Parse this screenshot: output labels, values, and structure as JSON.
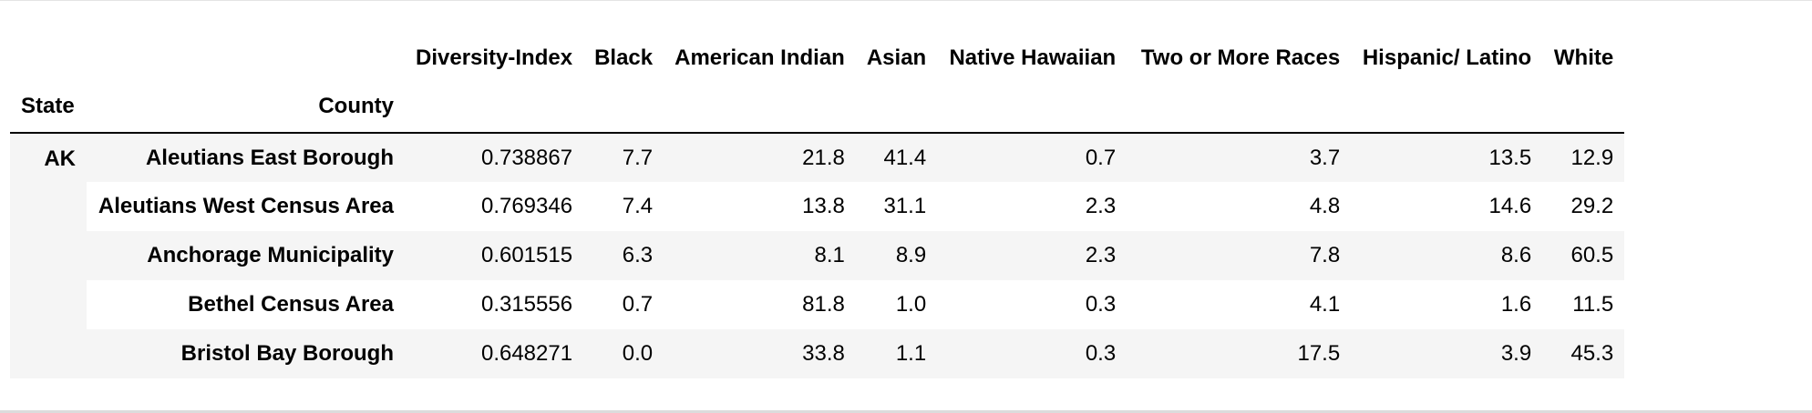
{
  "table": {
    "index_names": [
      "State",
      "County"
    ],
    "columns": [
      "Diversity-Index",
      "Black",
      "American Indian",
      "Asian",
      "Native Hawaiian",
      "Two or More Races",
      "Hispanic/ Latino",
      "White"
    ],
    "state": "AK",
    "rows": [
      {
        "county": "Aleutians East Borough",
        "values": [
          "0.738867",
          "7.7",
          "21.8",
          "41.4",
          "0.7",
          "3.7",
          "13.5",
          "12.9"
        ]
      },
      {
        "county": "Aleutians West Census Area",
        "values": [
          "0.769346",
          "7.4",
          "13.8",
          "31.1",
          "2.3",
          "4.8",
          "14.6",
          "29.2"
        ]
      },
      {
        "county": "Anchorage Municipality",
        "values": [
          "0.601515",
          "6.3",
          "8.1",
          "8.9",
          "2.3",
          "7.8",
          "8.6",
          "60.5"
        ]
      },
      {
        "county": "Bethel Census Area",
        "values": [
          "0.315556",
          "0.7",
          "81.8",
          "1.0",
          "0.3",
          "4.1",
          "1.6",
          "11.5"
        ]
      },
      {
        "county": "Bristol Bay Borough",
        "values": [
          "0.648271",
          "0.0",
          "33.8",
          "1.1",
          "0.3",
          "17.5",
          "3.9",
          "45.3"
        ]
      }
    ]
  }
}
